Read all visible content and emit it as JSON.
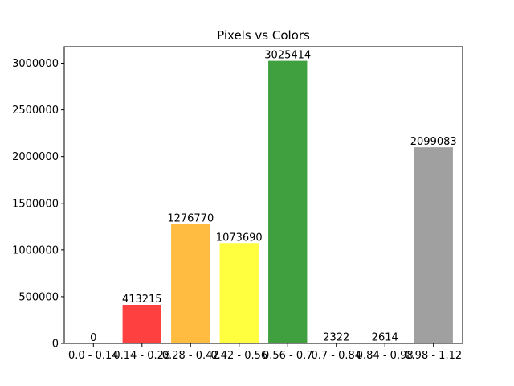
{
  "chart_data": {
    "type": "bar",
    "title": "Pixels vs Colors",
    "xlabel": "",
    "ylabel": "",
    "categories": [
      "0.0 - 0.14",
      "0.14 - 0.28",
      "0.28 - 0.42",
      "0.42 - 0.56",
      "0.56 - 0.7",
      "0.7 - 0.84",
      "0.84 - 0.98",
      "0.98 - 1.12"
    ],
    "values": [
      0,
      413215,
      1276770,
      1073690,
      3025414,
      2322,
      2614,
      2099083
    ],
    "colors": [
      "#ff0000",
      "#ff0000",
      "#ffa500",
      "#ffff00",
      "#008000",
      "#0000ff",
      "#800080",
      "#808080"
    ],
    "bar_alpha": 0.75,
    "ylim": [
      0,
      3176685
    ],
    "yticks": [
      0,
      500000,
      1000000,
      1500000,
      2000000,
      2500000,
      3000000
    ],
    "ytick_labels": [
      "0",
      "500000",
      "1000000",
      "1500000",
      "2000000",
      "2500000",
      "3000000"
    ],
    "grid": false,
    "legend": "none"
  }
}
